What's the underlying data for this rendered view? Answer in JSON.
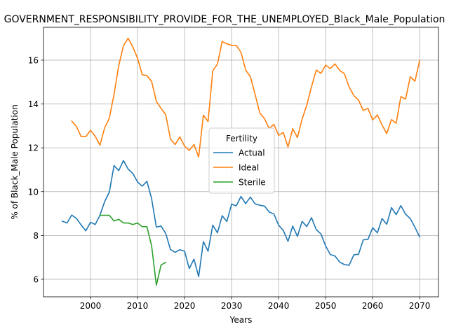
{
  "chart_data": {
    "type": "line",
    "title": "GOVERNMENT_RESPONSIBILITY_PROVIDE_FOR_THE_UNEMPLOYED_Black_Male_Population",
    "xlabel": "Years",
    "ylabel": "% of Black_Male Population",
    "xlim": [
      1990,
      2074
    ],
    "ylim": [
      5.2,
      17.5
    ],
    "xticks": [
      2000,
      2010,
      2020,
      2030,
      2040,
      2050,
      2060,
      2070
    ],
    "yticks": [
      6,
      8,
      10,
      12,
      14,
      16
    ],
    "grid": true,
    "legend": {
      "title": "Fertility",
      "placement": "center-right"
    },
    "series": [
      {
        "name": "Actual",
        "color": "#1f77b4",
        "x": [
          1994,
          1995,
          1996,
          1997,
          1998,
          1999,
          2000,
          2001,
          2002,
          2003,
          2004,
          2005,
          2006,
          2007,
          2008,
          2009,
          2010,
          2011,
          2012,
          2013,
          2014,
          2015,
          2016,
          2017,
          2018,
          2019,
          2020,
          2021,
          2022,
          2023,
          2024,
          2025,
          2026,
          2027,
          2028,
          2029,
          2030,
          2031,
          2032,
          2033,
          2034,
          2035,
          2036,
          2037,
          2038,
          2039,
          2040,
          2041,
          2042,
          2043,
          2044,
          2045,
          2046,
          2047,
          2048,
          2049,
          2050,
          2051,
          2052,
          2053,
          2054,
          2055,
          2056,
          2057,
          2058,
          2059,
          2060,
          2061,
          2062,
          2063,
          2064,
          2065,
          2066,
          2067,
          2068,
          2069,
          2070
        ],
        "values": [
          8.65,
          8.57,
          8.93,
          8.78,
          8.48,
          8.21,
          8.6,
          8.5,
          8.92,
          9.54,
          9.98,
          11.19,
          10.96,
          11.42,
          11.03,
          10.83,
          10.44,
          10.25,
          10.47,
          9.67,
          8.38,
          8.43,
          8.09,
          7.36,
          7.23,
          7.35,
          7.28,
          6.49,
          6.92,
          6.12,
          7.72,
          7.28,
          8.47,
          8.12,
          8.9,
          8.64,
          9.43,
          9.35,
          9.78,
          9.45,
          9.75,
          9.44,
          9.38,
          9.34,
          9.07,
          8.98,
          8.47,
          8.23,
          7.73,
          8.43,
          7.96,
          8.64,
          8.41,
          8.81,
          8.27,
          8.07,
          7.52,
          7.13,
          7.06,
          6.78,
          6.67,
          6.64,
          7.12,
          7.14,
          7.8,
          7.82,
          8.35,
          8.12,
          8.77,
          8.51,
          9.27,
          8.95,
          9.36,
          8.97,
          8.77,
          8.37,
          7.93
        ]
      },
      {
        "name": "Ideal",
        "color": "#ff7f0e",
        "x": [
          1996,
          1997,
          1998,
          1999,
          2000,
          2001,
          2002,
          2003,
          2004,
          2005,
          2006,
          2007,
          2008,
          2009,
          2010,
          2011,
          2012,
          2013,
          2014,
          2015,
          2016,
          2017,
          2018,
          2019,
          2020,
          2021,
          2022,
          2023,
          2024,
          2025,
          2026,
          2027,
          2028,
          2029,
          2030,
          2031,
          2032,
          2033,
          2034,
          2035,
          2036,
          2037,
          2038,
          2039,
          2040,
          2041,
          2042,
          2043,
          2044,
          2045,
          2046,
          2047,
          2048,
          2049,
          2050,
          2051,
          2052,
          2053,
          2054,
          2055,
          2056,
          2057,
          2058,
          2059,
          2060,
          2061,
          2062,
          2063,
          2064,
          2065,
          2066,
          2067,
          2068,
          2069,
          2070
        ],
        "values": [
          13.22,
          12.98,
          12.51,
          12.51,
          12.8,
          12.53,
          12.12,
          12.91,
          13.35,
          14.44,
          15.75,
          16.66,
          17.0,
          16.6,
          16.09,
          15.34,
          15.29,
          15.03,
          14.12,
          13.8,
          13.51,
          12.4,
          12.15,
          12.5,
          12.08,
          11.88,
          12.15,
          11.58,
          13.49,
          13.2,
          15.52,
          15.82,
          16.86,
          16.74,
          16.68,
          16.67,
          16.36,
          15.55,
          15.24,
          14.44,
          13.59,
          13.33,
          12.88,
          13.07,
          12.57,
          12.7,
          12.04,
          12.87,
          12.47,
          13.31,
          13.95,
          14.79,
          15.55,
          15.4,
          15.77,
          15.62,
          15.83,
          15.53,
          15.38,
          14.78,
          14.38,
          14.18,
          13.71,
          13.8,
          13.27,
          13.5,
          13.04,
          12.65,
          13.29,
          13.12,
          14.34,
          14.22,
          15.24,
          15.04,
          15.99
        ]
      },
      {
        "name": "Sterile",
        "color": "#2ca02c",
        "x": [
          2002,
          2003,
          2004,
          2005,
          2006,
          2007,
          2008,
          2009,
          2010,
          2011,
          2012,
          2013,
          2014,
          2015,
          2016
        ],
        "values": [
          8.92,
          8.92,
          8.92,
          8.66,
          8.74,
          8.57,
          8.57,
          8.5,
          8.57,
          8.4,
          8.4,
          7.52,
          5.73,
          6.65,
          6.77
        ]
      }
    ]
  }
}
